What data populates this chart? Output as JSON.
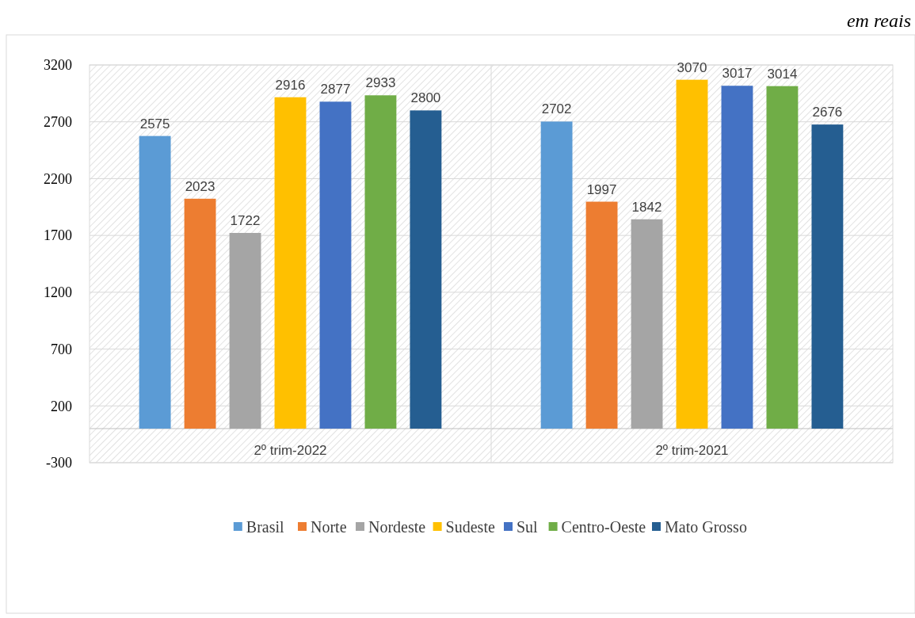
{
  "chart_data": {
    "type": "bar",
    "annotations": [
      "em reais"
    ],
    "categories": [
      "2º trim-2022",
      "2º trim-2021"
    ],
    "series": [
      {
        "name": "Brasil",
        "color": "#5b9bd5",
        "values": [
          2575,
          2702
        ]
      },
      {
        "name": "Norte",
        "color": "#ed7d31",
        "values": [
          2023,
          1997
        ]
      },
      {
        "name": "Nordeste",
        "color": "#a5a5a5",
        "values": [
          1722,
          1842
        ]
      },
      {
        "name": "Sudeste",
        "color": "#ffc000",
        "values": [
          2916,
          3070
        ]
      },
      {
        "name": "Sul",
        "color": "#4472c4",
        "values": [
          2877,
          3017
        ]
      },
      {
        "name": "Centro-Oeste",
        "color": "#70ad47",
        "values": [
          2933,
          3014
        ]
      },
      {
        "name": "Mato Grosso",
        "color": "#255e91",
        "values": [
          2800,
          2676
        ]
      }
    ],
    "ylim": [
      -300,
      3200
    ],
    "yticks": [
      -300,
      200,
      700,
      1200,
      1700,
      2200,
      2700,
      3200
    ],
    "grid": "y",
    "legend": "bottom",
    "data_labels": true
  }
}
